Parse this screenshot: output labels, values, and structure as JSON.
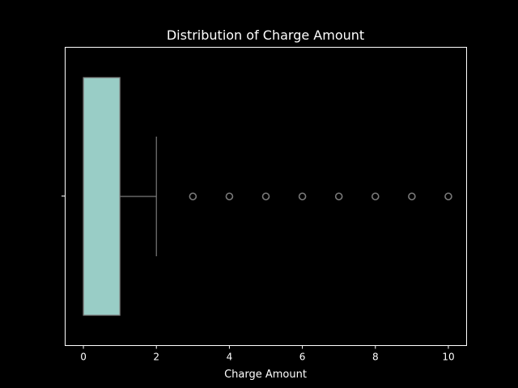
{
  "chart_data": {
    "type": "box",
    "orientation": "horizontal",
    "title": "Distribution of Charge Amount",
    "xlabel": "Charge Amount",
    "ylabel": "",
    "xlim": [
      -0.5,
      10.5
    ],
    "xticks": [
      "0",
      "2",
      "4",
      "6",
      "8",
      "10"
    ],
    "xtick_values": [
      0,
      2,
      4,
      6,
      8,
      10
    ],
    "grid": false,
    "box": {
      "q1": 0,
      "median": 0,
      "q3": 1,
      "whisker_low": 0,
      "whisker_high": 2
    },
    "outliers": [
      3,
      4,
      5,
      6,
      7,
      8,
      9,
      10
    ]
  },
  "colors": {
    "background": "#000000",
    "box_fill": "#99cdc6",
    "line": "#7a7a7a",
    "axes": "#ffffff",
    "text": "#ffffff"
  }
}
